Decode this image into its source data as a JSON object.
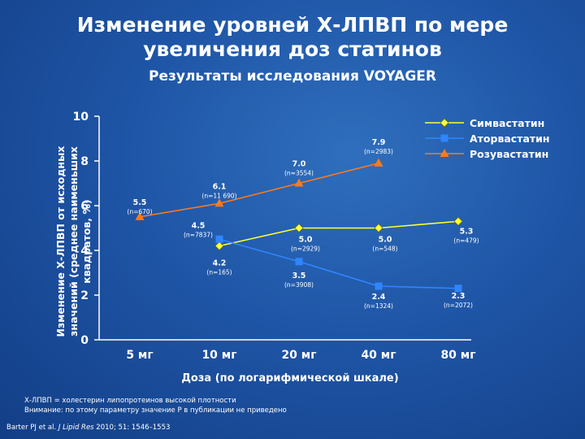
{
  "slide": {
    "title_line1": "Изменение уровней Х-ЛПВП по мере",
    "title_line2": "увеличения доз статинов",
    "subtitle": "Результаты исследования VOYAGER",
    "footnote1": "Х-ЛПВП = холестерин липопротеинов высокой плотности",
    "footnote2": "Внимание: по этому параметру значение P в публикации не приведено",
    "ref_authors": "Barter PJ et al. ",
    "ref_journal": "J Lipid Res",
    "ref_rest": " 2010; 51: 1546–1553"
  },
  "chart_data": {
    "type": "line",
    "title": "",
    "ylabel": "Изменение Х-ЛПВП от исходных значений (среднее наименьших квадратов, %)",
    "xlabel": "Доза (по логарифмической шкале)",
    "categories": [
      "5 мг",
      "10 мг",
      "20 мг",
      "40 мг",
      "80 мг"
    ],
    "yticks": [
      "0",
      "2",
      "4",
      "6",
      "8",
      "10"
    ],
    "ylim": [
      0,
      10
    ],
    "legend_position": "top-right",
    "series": [
      {
        "name": "Симвастатин",
        "color": "#ffff33",
        "marker": "diamond",
        "points": [
          {
            "x": "10 мг",
            "y": 4.2,
            "label": "4.2",
            "n": "(n=165)"
          },
          {
            "x": "20 мг",
            "y": 5.0,
            "label": "5.0",
            "n": "(n=2929)"
          },
          {
            "x": "40 мг",
            "y": 5.0,
            "label": "5.0",
            "n": "(n=548)"
          },
          {
            "x": "80 мг",
            "y": 5.3,
            "label": "5.3",
            "n": "(n=479)"
          }
        ]
      },
      {
        "name": "Аторвастатин",
        "color": "#2e86ff",
        "marker": "square",
        "points": [
          {
            "x": "10 мг",
            "y": 4.5,
            "label": "4.5",
            "n": "(n=7837)"
          },
          {
            "x": "20 мг",
            "y": 3.5,
            "label": "3.5",
            "n": "(n=3908)"
          },
          {
            "x": "40 мг",
            "y": 2.4,
            "label": "2.4",
            "n": "(n=1324)"
          },
          {
            "x": "80 мг",
            "y": 2.3,
            "label": "2.3",
            "n": "(n=2072)"
          }
        ]
      },
      {
        "name": "Розувастатин",
        "color": "#ff7a1a",
        "marker": "triangle",
        "points": [
          {
            "x": "5 мг",
            "y": 5.5,
            "label": "5.5",
            "n": "(n=670)"
          },
          {
            "x": "10 мг",
            "y": 6.1,
            "label": "6.1",
            "n": "(n=11 690)"
          },
          {
            "x": "20 мг",
            "y": 7.0,
            "label": "7.0",
            "n": "(n=3554)"
          },
          {
            "x": "40 мг",
            "y": 7.9,
            "label": "7.9",
            "n": "(n=2983)"
          }
        ]
      }
    ]
  }
}
